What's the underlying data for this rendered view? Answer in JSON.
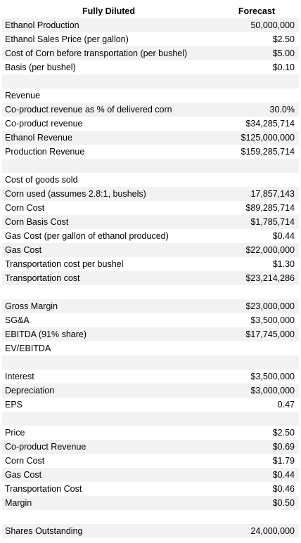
{
  "header": {
    "label": "Fully Diluted",
    "value": "Forecast"
  },
  "rows": [
    {
      "label": "Ethanol Production",
      "value": "50,000,000"
    },
    {
      "label": "Ethanol Sales Price (per gallon)",
      "value": "$2.50"
    },
    {
      "label": "Cost of Corn before transportation (per bushel)",
      "value": "$5.00"
    },
    {
      "label": "Basis (per bushel)",
      "value": "$0.10"
    },
    {
      "label": "",
      "value": ""
    },
    {
      "label": "Revenue",
      "value": ""
    },
    {
      "label": "Co-product revenue as % of delivered corn",
      "value": "30.0%"
    },
    {
      "label": "Co-product revenue",
      "value": "$34,285,714"
    },
    {
      "label": "Ethanol Revenue",
      "value": "$125,000,000"
    },
    {
      "label": "Production Revenue",
      "value": "$159,285,714"
    },
    {
      "label": "",
      "value": ""
    },
    {
      "label": "Cost of goods sold",
      "value": ""
    },
    {
      "label": "Corn used (assumes 2.8:1, bushels)",
      "value": "17,857,143"
    },
    {
      "label": "Corn Cost",
      "value": "$89,285,714"
    },
    {
      "label": "Corn Basis Cost",
      "value": "$1,785,714"
    },
    {
      "label": "Gas Cost (per gallon of ethanol produced)",
      "value": "$0.44"
    },
    {
      "label": "Gas Cost",
      "value": "$22,000,000"
    },
    {
      "label": "Transportation cost per bushel",
      "value": "$1.30"
    },
    {
      "label": "Transportation cost",
      "value": "$23,214,286"
    },
    {
      "label": "",
      "value": ""
    },
    {
      "label": "Gross Margin",
      "value": "$23,000,000"
    },
    {
      "label": "SG&A",
      "value": "$3,500,000"
    },
    {
      "label": "EBITDA (91% share)",
      "value": "$17,745,000"
    },
    {
      "label": "EV/EBITDA",
      "value": ""
    },
    {
      "label": "",
      "value": ""
    },
    {
      "label": "Interest",
      "value": "$3,500,000"
    },
    {
      "label": "Depreciation",
      "value": "$3,000,000"
    },
    {
      "label": "EPS",
      "value": "0.47"
    },
    {
      "label": "",
      "value": ""
    },
    {
      "label": "Price",
      "value": "$2.50"
    },
    {
      "label": "Co-product Revenue",
      "value": "$0.69"
    },
    {
      "label": "Corn Cost",
      "value": "$1.79"
    },
    {
      "label": "Gas Cost",
      "value": "$0.44"
    },
    {
      "label": "Transportation Cost",
      "value": "$0.46"
    },
    {
      "label": "Margin",
      "value": "$0.50"
    },
    {
      "label": "",
      "value": ""
    },
    {
      "label": "Shares Outstanding",
      "value": "24,000,000"
    }
  ]
}
